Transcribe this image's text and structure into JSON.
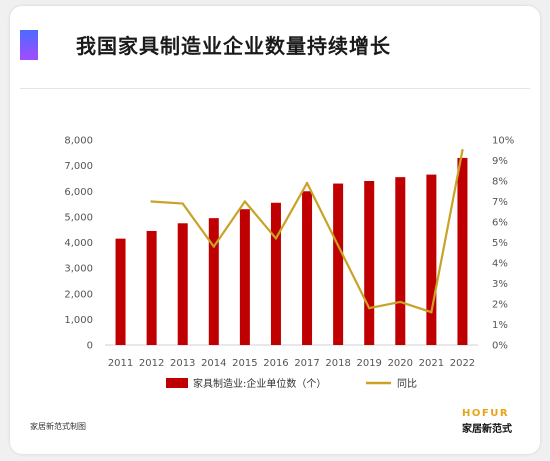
{
  "header": {
    "title": "我国家具制造业企业数量持续增长"
  },
  "footer": {
    "source": "家居新范式制图",
    "brand_en": "HOFUR",
    "brand_cn": "家居新范式"
  },
  "colors": {
    "bar": "#c00000",
    "line": "#c9a227",
    "accent_top": "#4b6bff",
    "accent_bottom": "#a44bff"
  },
  "chart_data": {
    "type": "bar",
    "categories": [
      "2011",
      "2012",
      "2013",
      "2014",
      "2015",
      "2016",
      "2017",
      "2018",
      "2019",
      "2020",
      "2021",
      "2022"
    ],
    "series": [
      {
        "name": "家具制造业:企业单位数（个）",
        "type": "bar",
        "axis": "left",
        "values": [
          4150,
          4450,
          4750,
          4950,
          5300,
          5550,
          6000,
          6300,
          6400,
          6550,
          6650,
          7300
        ]
      },
      {
        "name": "同比",
        "type": "line",
        "axis": "right",
        "values": [
          null,
          7.0,
          6.9,
          4.8,
          7.0,
          5.2,
          7.9,
          null,
          1.8,
          2.1,
          1.6,
          9.5
        ]
      }
    ],
    "ylim_left": [
      0,
      8000
    ],
    "ylim_right": [
      0,
      10
    ],
    "yticks_left": [
      "0",
      "1,000",
      "2,000",
      "3,000",
      "4,000",
      "5,000",
      "6,000",
      "7,000",
      "8,000"
    ],
    "yticks_right": [
      "0%",
      "1%",
      "2%",
      "3%",
      "4%",
      "5%",
      "6%",
      "7%",
      "8%",
      "9%",
      "10%"
    ],
    "legend": "bottom",
    "grid": false
  }
}
